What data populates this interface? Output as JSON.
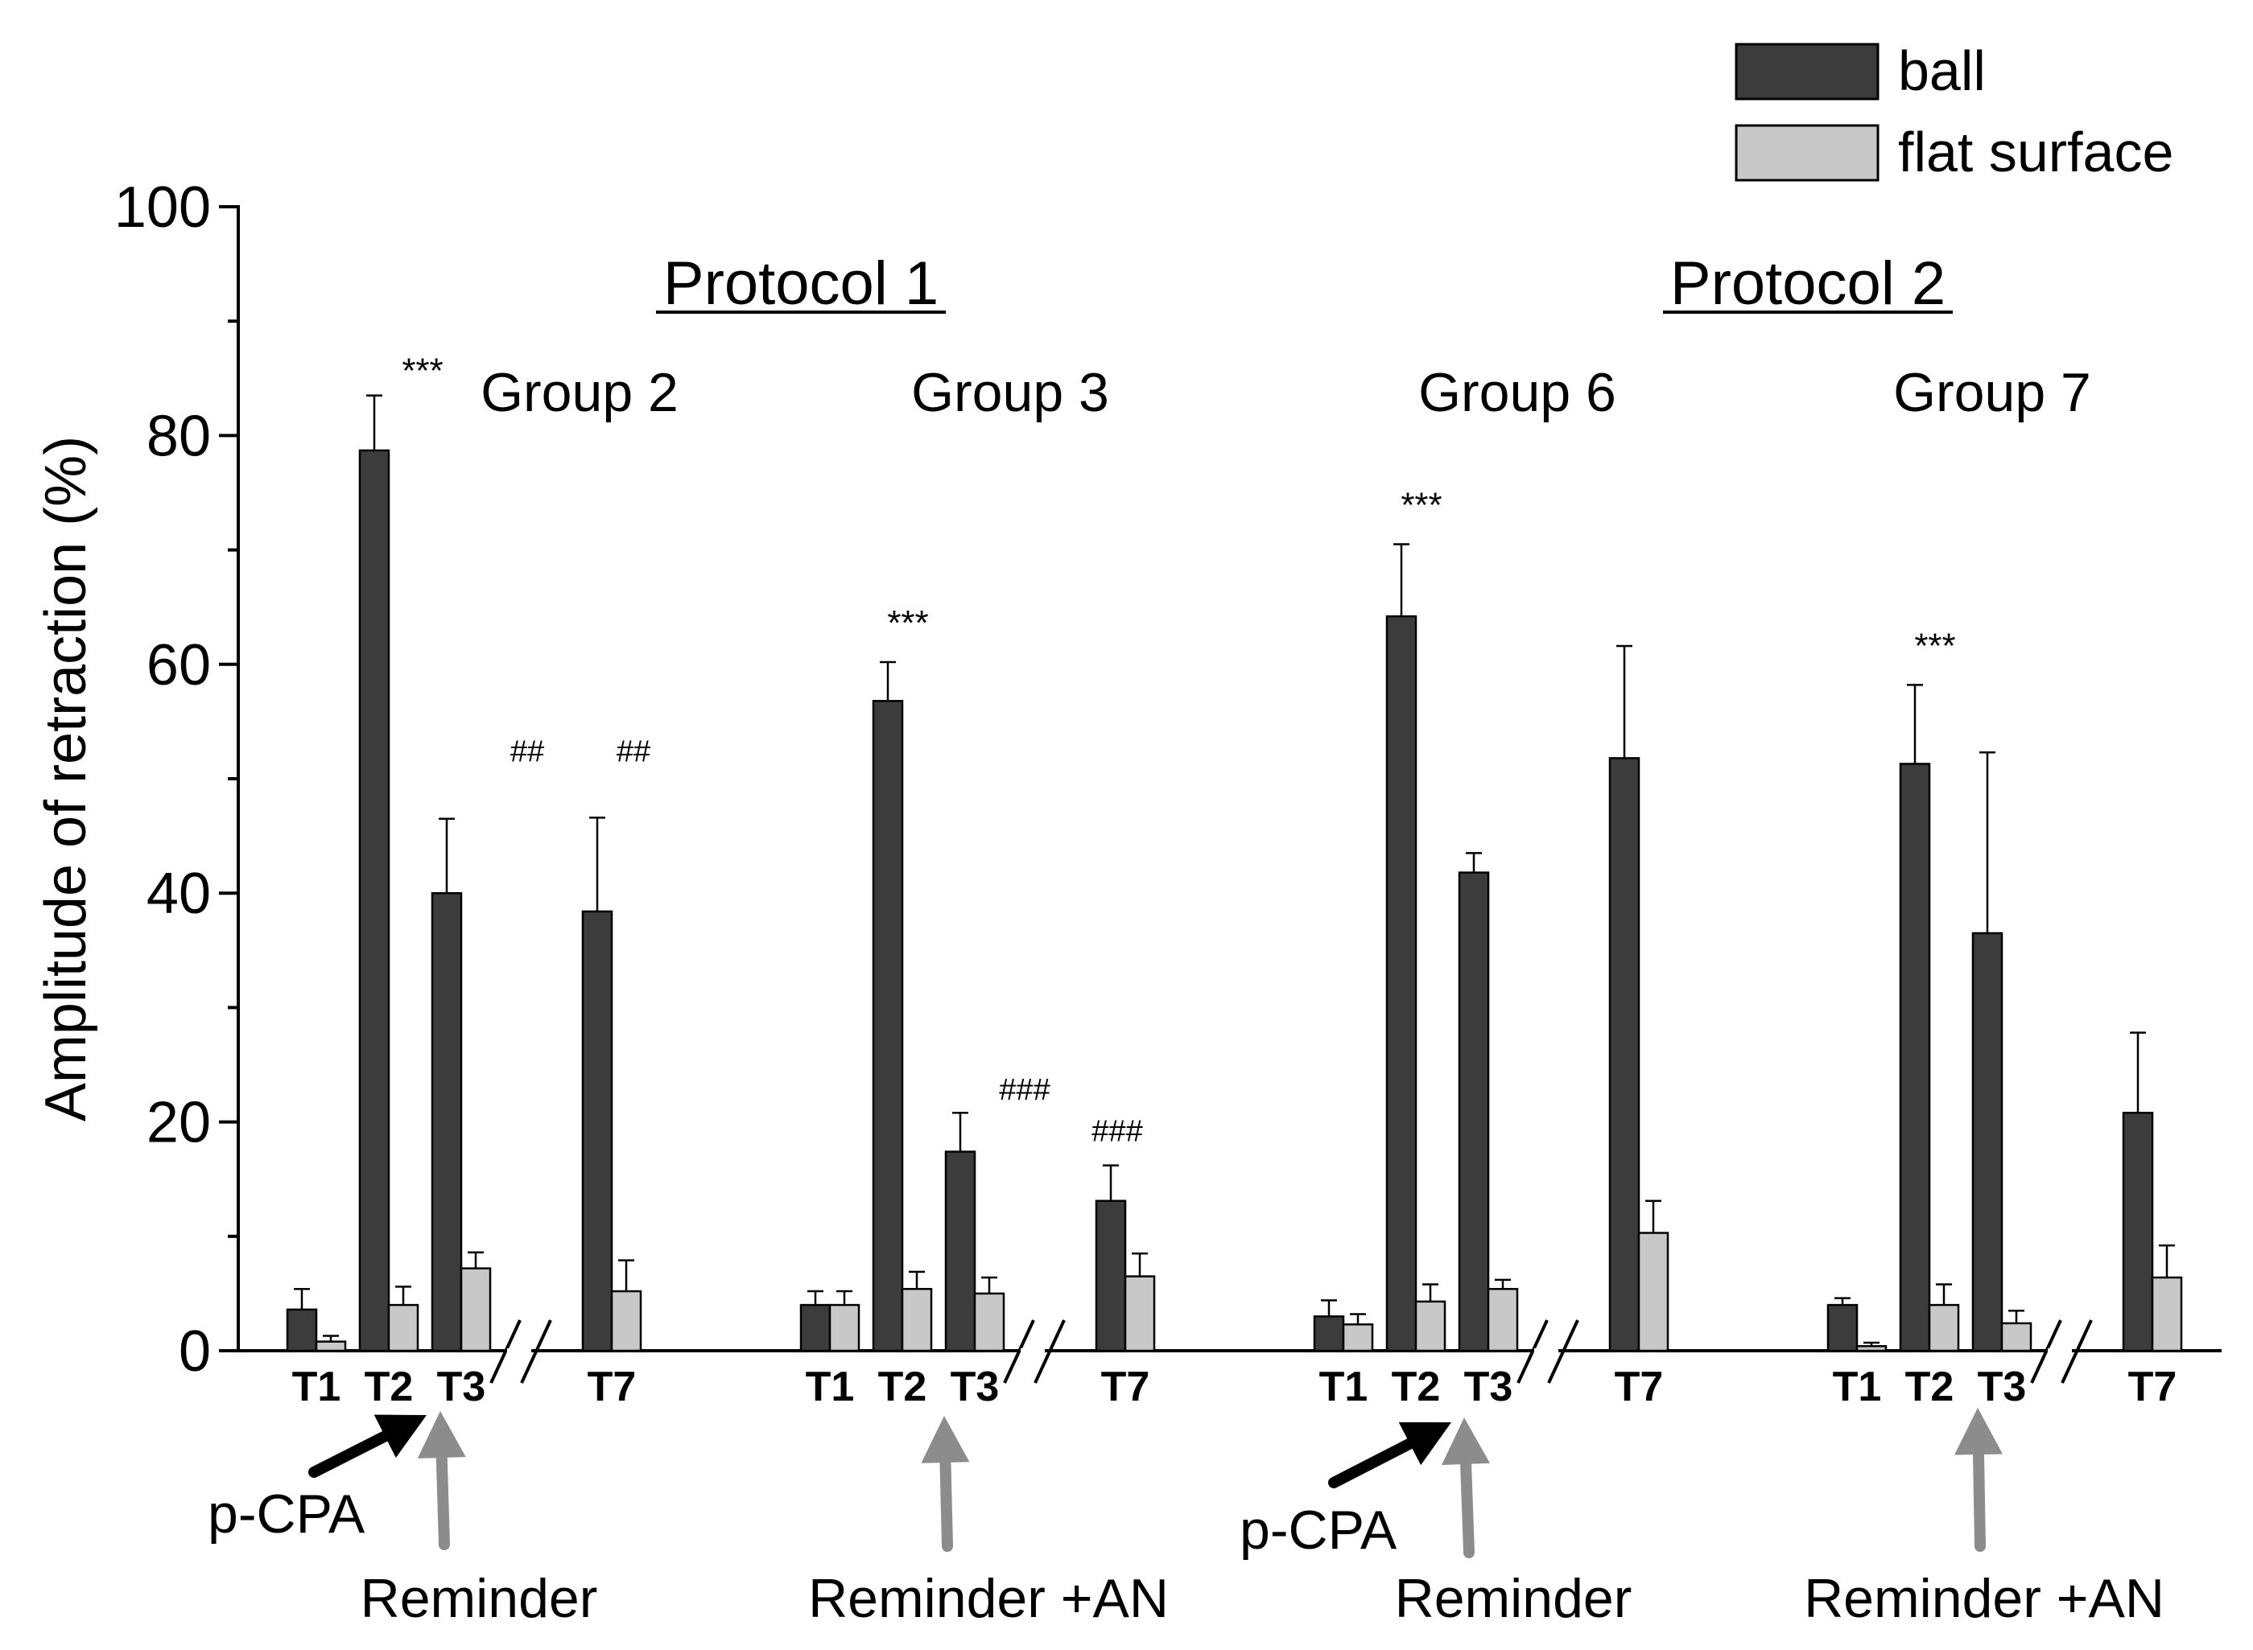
{
  "chart_data": {
    "type": "bar",
    "title": "",
    "xlabel": "",
    "ylabel": "Amplitude of retraction (%)",
    "ylim": [
      0,
      100
    ],
    "yticks": [
      0,
      20,
      40,
      60,
      80,
      100
    ],
    "grid": false,
    "legend": {
      "position": "top-right",
      "entries": [
        {
          "name": "ball",
          "color": "#3c3c3c"
        },
        {
          "name": "flat surface",
          "color": "#c8c8c8"
        }
      ]
    },
    "protocols": [
      {
        "label": "Protocol 1",
        "groups": [
          0,
          1
        ]
      },
      {
        "label": "Protocol 2",
        "groups": [
          2,
          3
        ]
      }
    ],
    "groups": [
      {
        "label": "Group 2",
        "trials": [
          {
            "label": "T1",
            "ball": 3.6,
            "ball_err": 1.8,
            "flat": 0.8,
            "flat_err": 0.5,
            "sig": "",
            "hash": ""
          },
          {
            "label": "T2",
            "ball": 78.7,
            "ball_err": 4.8,
            "flat": 4.0,
            "flat_err": 1.6,
            "sig": "***",
            "hash": ""
          },
          {
            "label": "T3",
            "ball": 40.0,
            "ball_err": 6.5,
            "flat": 7.2,
            "flat_err": 1.4,
            "sig": "",
            "hash": "##"
          },
          {
            "label": "T7",
            "ball": 38.4,
            "ball_err": 8.2,
            "flat": 5.2,
            "flat_err": 2.7,
            "sig": "",
            "hash": "##"
          }
        ]
      },
      {
        "label": "Group 3",
        "trials": [
          {
            "label": "T1",
            "ball": 4.0,
            "ball_err": 1.2,
            "flat": 4.0,
            "flat_err": 1.2,
            "sig": "",
            "hash": ""
          },
          {
            "label": "T2",
            "ball": 56.8,
            "ball_err": 3.4,
            "flat": 5.4,
            "flat_err": 1.5,
            "sig": "***",
            "hash": ""
          },
          {
            "label": "T3",
            "ball": 17.4,
            "ball_err": 3.4,
            "flat": 5.0,
            "flat_err": 1.4,
            "sig": "",
            "hash": "###"
          },
          {
            "label": "T7",
            "ball": 13.1,
            "ball_err": 3.1,
            "flat": 6.5,
            "flat_err": 2.0,
            "sig": "",
            "hash": "###"
          }
        ]
      },
      {
        "label": "Group 6",
        "trials": [
          {
            "label": "T1",
            "ball": 3.0,
            "ball_err": 1.4,
            "flat": 2.3,
            "flat_err": 0.9,
            "sig": "",
            "hash": ""
          },
          {
            "label": "T2",
            "ball": 64.2,
            "ball_err": 6.3,
            "flat": 4.3,
            "flat_err": 1.5,
            "sig": "***",
            "hash": ""
          },
          {
            "label": "T3",
            "ball": 41.8,
            "ball_err": 1.7,
            "flat": 5.4,
            "flat_err": 0.8,
            "sig": "",
            "hash": ""
          },
          {
            "label": "T7",
            "ball": 51.8,
            "ball_err": 9.8,
            "flat": 10.3,
            "flat_err": 2.8,
            "sig": "",
            "hash": ""
          }
        ]
      },
      {
        "label": "Group 7",
        "trials": [
          {
            "label": "T1",
            "ball": 4.0,
            "ball_err": 0.6,
            "flat": 0.4,
            "flat_err": 0.3,
            "sig": "",
            "hash": ""
          },
          {
            "label": "T2",
            "ball": 51.3,
            "ball_err": 6.9,
            "flat": 4.0,
            "flat_err": 1.8,
            "sig": "***",
            "hash": ""
          },
          {
            "label": "T3",
            "ball": 36.5,
            "ball_err": 15.8,
            "flat": 2.4,
            "flat_err": 1.1,
            "sig": "",
            "hash": ""
          },
          {
            "label": "T7",
            "ball": 20.8,
            "ball_err": 7.0,
            "flat": 6.4,
            "flat_err": 2.8,
            "sig": "",
            "hash": ""
          }
        ]
      }
    ],
    "annotations": [
      {
        "text": "p-CPA",
        "group": 0,
        "arrow_color": "#000000"
      },
      {
        "text": "Reminder",
        "group": 0,
        "arrow_color": "#8c8c8c"
      },
      {
        "text": "Reminder +AN",
        "group": 1,
        "arrow_color": "#8c8c8c"
      },
      {
        "text": "p-CPA",
        "group": 2,
        "arrow_color": "#000000"
      },
      {
        "text": "Reminder",
        "group": 2,
        "arrow_color": "#8c8c8c"
      },
      {
        "text": "Reminder +AN",
        "group": 3,
        "arrow_color": "#8c8c8c"
      }
    ]
  }
}
